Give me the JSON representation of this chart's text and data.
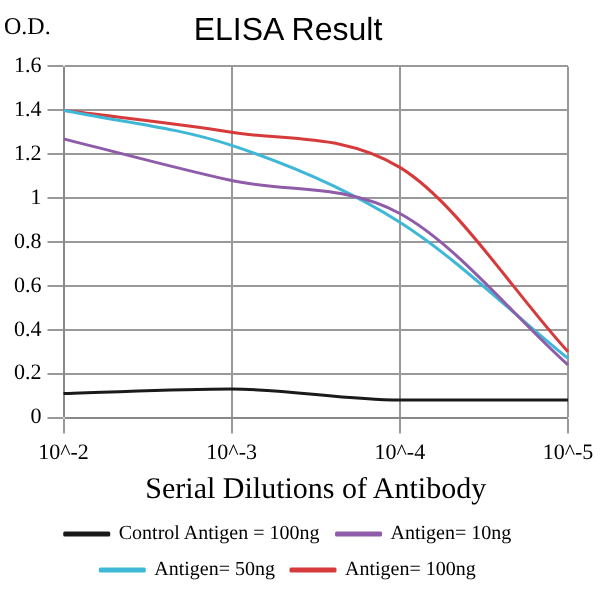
{
  "chart_data": {
    "type": "line",
    "title": "ELISA Result",
    "ylabel": "O.D.",
    "xlabel": "Serial Dilutions of Antibody",
    "categories": [
      "10^-2",
      "10^-3",
      "10^-4",
      "10^-5"
    ],
    "series": [
      {
        "name": "Control Antigen = 100ng",
        "color": "#1a1a1a",
        "values": [
          0.11,
          0.13,
          0.08,
          0.08
        ]
      },
      {
        "name": "Antigen= 10ng",
        "color": "#8e5ca8",
        "values": [
          1.27,
          1.08,
          0.93,
          0.24
        ]
      },
      {
        "name": "Antigen= 50ng",
        "color": "#3fb8d8",
        "values": [
          1.4,
          1.24,
          0.89,
          0.27
        ]
      },
      {
        "name": "Antigen= 100ng",
        "color": "#d63a3a",
        "values": [
          1.4,
          1.3,
          1.14,
          0.3
        ]
      }
    ],
    "ylim": [
      0,
      1.6
    ],
    "yticks": [
      0,
      0.2,
      0.4,
      0.6,
      0.8,
      1,
      1.2,
      1.4,
      1.6
    ],
    "grid": true,
    "legend": "bottom",
    "marker": "none",
    "line_style": "solid"
  }
}
